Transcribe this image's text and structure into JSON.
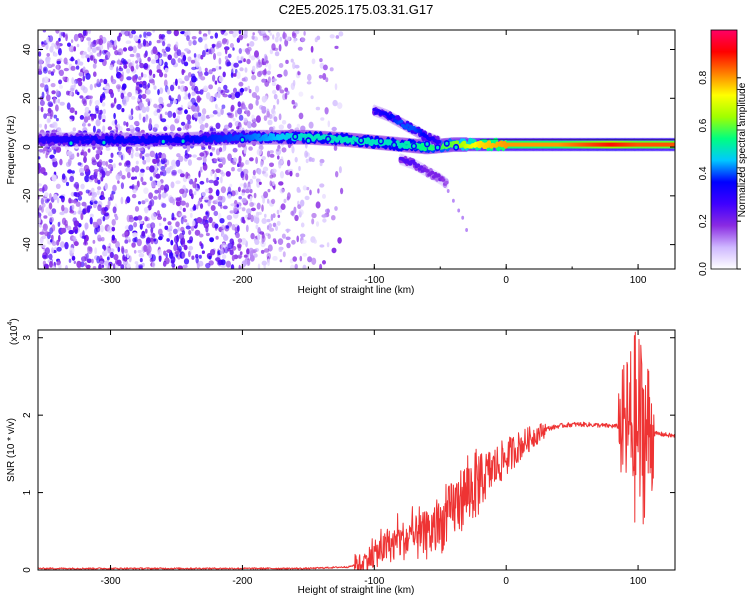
{
  "title": "C2E5.2025.175.03.31.G17",
  "chart_data": [
    {
      "type": "heatmap",
      "xlabel": "Height of straight line (km)",
      "ylabel": "Frequency (Hz)",
      "xlim": [
        -355,
        128
      ],
      "ylim": [
        -50,
        48
      ],
      "x_ticks": [
        -300,
        -200,
        -100,
        0,
        100
      ],
      "y_ticks": [
        -40,
        -20,
        0,
        20,
        40
      ],
      "colorbar": {
        "label": "Normalized spectral amplitude",
        "range": [
          0,
          1
        ],
        "ticks": [
          0.0,
          0.2,
          0.4,
          0.6,
          0.8
        ],
        "colors": [
          "#ffffff",
          "#cfb8ff",
          "#8a2be2",
          "#3f00ff",
          "#0000ff",
          "#00c8ff",
          "#00ff80",
          "#a0ff00",
          "#ffff00",
          "#ff8000",
          "#ff0000",
          "#ff0066"
        ]
      },
      "ridges": [
        {
          "x": [
            -355,
            -300,
            -250,
            -200,
            -150,
            -120,
            -100,
            -80,
            -60,
            -40,
            -20,
            0,
            40,
            80,
            100,
            128
          ],
          "y": [
            3,
            3,
            3,
            4,
            4,
            3,
            2,
            1,
            0,
            1,
            1,
            1,
            1,
            1,
            1,
            1
          ],
          "peak_amplitude": [
            0.3,
            0.35,
            0.35,
            0.4,
            0.5,
            0.5,
            0.5,
            0.5,
            0.55,
            0.6,
            0.75,
            0.8,
            0.8,
            0.9,
            0.85,
            0.85
          ]
        },
        {
          "x": [
            -100,
            -90,
            -80,
            -70,
            -60,
            -50
          ],
          "y": [
            15,
            13,
            10,
            7,
            4,
            2
          ],
          "peak_amplitude": [
            0.3,
            0.35,
            0.4,
            0.4,
            0.35,
            0.3
          ]
        },
        {
          "x": [
            -80,
            -70,
            -60,
            -50,
            -45
          ],
          "y": [
            -5,
            -7,
            -10,
            -13,
            -15
          ],
          "peak_amplitude": [
            0.25,
            0.25,
            0.2,
            0.2,
            0.15
          ]
        }
      ]
    },
    {
      "type": "line",
      "xlabel": "Height of straight line (km)",
      "ylabel": "SNR (10 * v/v)",
      "y_scale_note": "(x10",
      "y_scale_exponent": "4",
      "xlim": [
        -355,
        128
      ],
      "ylim": [
        0,
        3.1
      ],
      "x_ticks": [
        -300,
        -200,
        -100,
        0,
        100
      ],
      "y_ticks": [
        0,
        1,
        2,
        3
      ],
      "line_color": "#ee3333",
      "series": [
        {
          "x": [
            -355,
            -300,
            -250,
            -200,
            -150,
            -120,
            -110,
            -100,
            -90,
            -80,
            -70,
            -60,
            -50,
            -40,
            -30,
            -20,
            -10,
            0,
            10,
            20,
            30,
            40,
            50,
            60,
            70,
            80,
            90,
            95,
            100,
            105,
            110,
            115,
            128
          ],
          "y": [
            0.02,
            0.02,
            0.02,
            0.02,
            0.02,
            0.04,
            0.08,
            0.2,
            0.3,
            0.38,
            0.4,
            0.45,
            0.55,
            0.8,
            1.0,
            1.15,
            1.3,
            1.45,
            1.6,
            1.72,
            1.82,
            1.86,
            1.88,
            1.88,
            1.87,
            1.86,
            1.85,
            1.86,
            1.8,
            1.78,
            1.76,
            1.76,
            1.73
          ]
        }
      ]
    }
  ]
}
